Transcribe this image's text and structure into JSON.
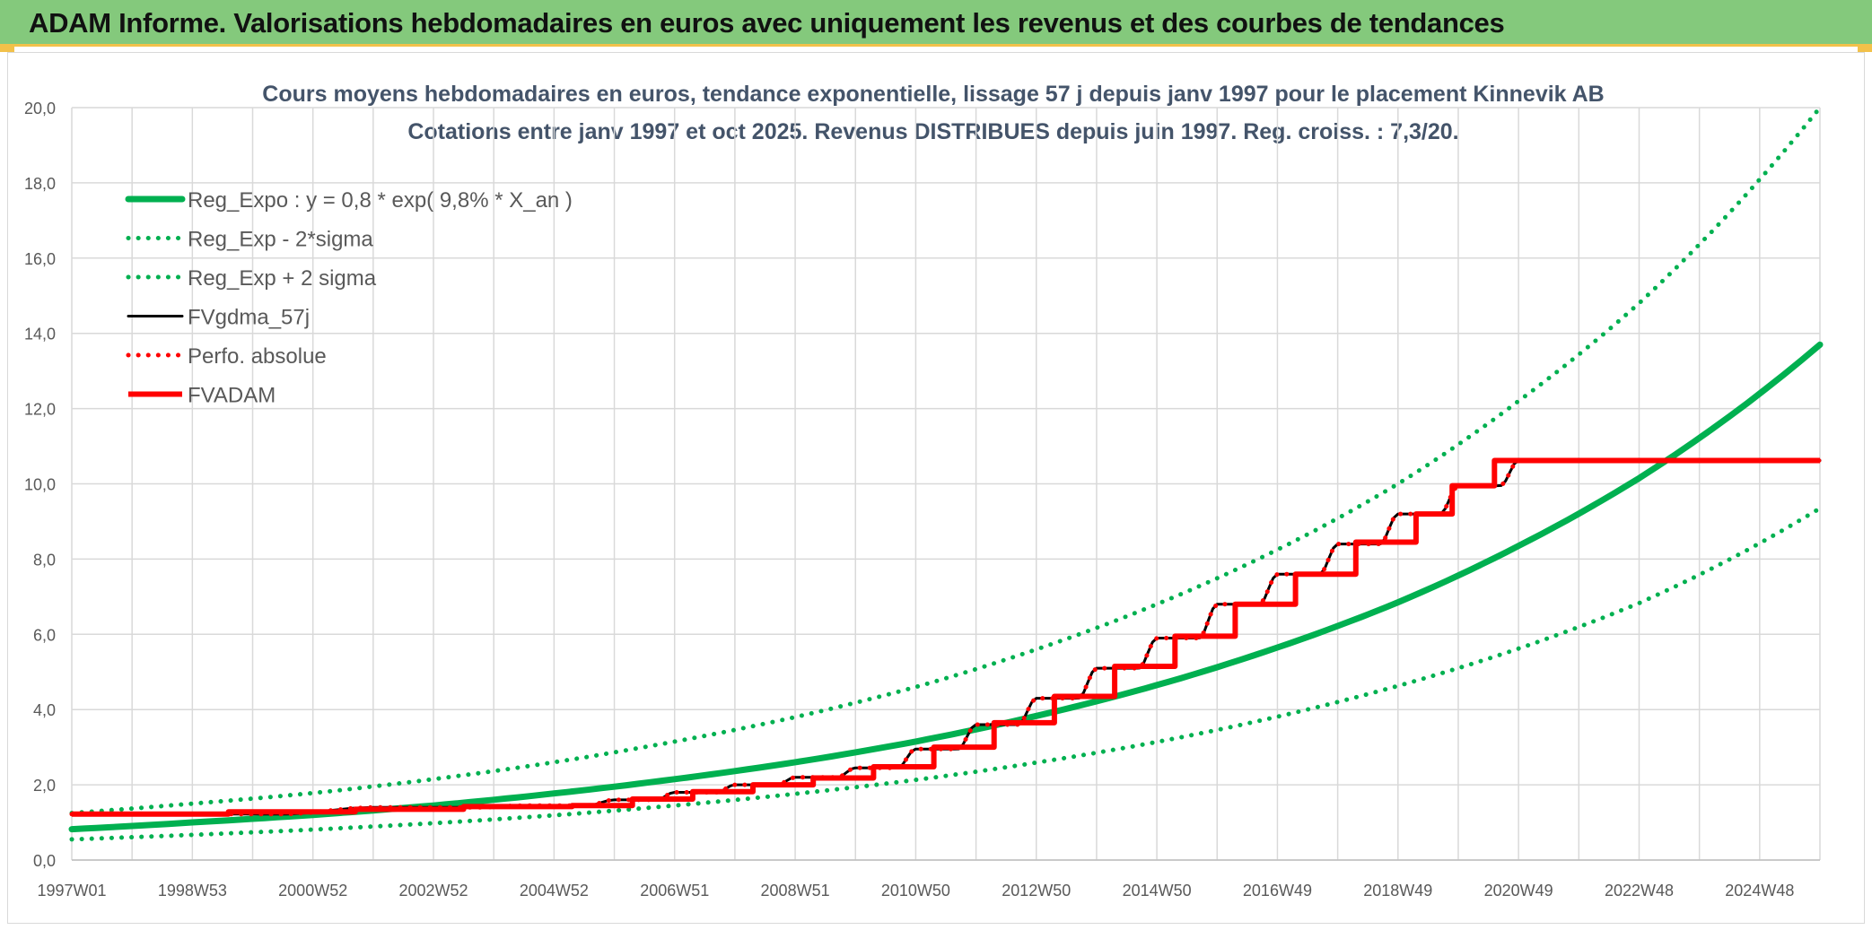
{
  "header": {
    "title": "ADAM Informe. Valorisations hebdomadaires en euros avec uniquement les revenus et des courbes de tendances"
  },
  "colors": {
    "banner": "#84c97c",
    "banner_accent": "#f2c14a",
    "green": "#00b050",
    "red": "#ff0000",
    "black": "#000000",
    "grid": "#d9d9d9",
    "axis_text": "#595959",
    "title_text": "#44546a"
  },
  "chart_data": {
    "type": "line",
    "title_line1": "Cours moyens hebdomadaires en euros, tendance exponentielle, lissage 57 j depuis janv 1997 pour le placement Kinnevik AB",
    "title_line2": "Cotations entre janv 1997 et oct 2025. Revenus DISTRIBUES depuis juin 1997. Reg. croiss. : 7,3/20.",
    "x_ticks": [
      "1997W01",
      "1998W53",
      "2000W52",
      "2002W52",
      "2004W52",
      "2006W51",
      "2008W51",
      "2010W50",
      "2012W50",
      "2014W50",
      "2016W49",
      "2018W49",
      "2020W49",
      "2022W48",
      "2024W48"
    ],
    "x_tick_years": [
      1997.0,
      1999.0,
      2001.0,
      2003.0,
      2005.0,
      2007.0,
      2009.0,
      2011.0,
      2013.0,
      2015.0,
      2017.0,
      2019.0,
      2021.0,
      2023.0,
      2025.0
    ],
    "xlim": [
      1997.0,
      2026.0
    ],
    "ylim": [
      0,
      20
    ],
    "y_ticks": [
      "0,0",
      "2,0",
      "4,0",
      "6,0",
      "8,0",
      "10,0",
      "12,0",
      "14,0",
      "16,0",
      "18,0",
      "20,0"
    ],
    "y_tick_values": [
      0,
      2,
      4,
      6,
      8,
      10,
      12,
      14,
      16,
      18,
      20
    ],
    "grid": true,
    "legend_position": "top-left",
    "series": [
      {
        "name": "Reg_Expo : y = 0,8 * exp( 9,8% *  X_an )",
        "style": "solid-thick",
        "color": "#00b050",
        "x": [
          1997,
          1999,
          2001,
          2003,
          2005,
          2007,
          2009,
          2011,
          2013,
          2015,
          2017,
          2019,
          2021,
          2023,
          2026
        ],
        "values": [
          0.82,
          1.0,
          1.2,
          1.45,
          1.77,
          2.15,
          2.6,
          3.15,
          3.83,
          4.65,
          5.65,
          6.85,
          8.35,
          10.15,
          13.7
        ]
      },
      {
        "name": "Reg_Exp - 2*sigma",
        "style": "dotted",
        "color": "#00b050",
        "x": [
          1997,
          1999,
          2001,
          2003,
          2005,
          2007,
          2009,
          2011,
          2013,
          2015,
          2017,
          2019,
          2021,
          2023,
          2026
        ],
        "values": [
          0.55,
          0.67,
          0.81,
          0.98,
          1.19,
          1.45,
          1.76,
          2.13,
          2.59,
          3.14,
          3.81,
          4.63,
          5.62,
          6.83,
          9.35
        ]
      },
      {
        "name": "Reg_Exp + 2 sigma",
        "style": "dotted",
        "color": "#00b050",
        "x": [
          1997,
          1999,
          2001,
          2003,
          2005,
          2007,
          2009,
          2011,
          2013,
          2015,
          2017,
          2019,
          2021,
          2023,
          2026
        ],
        "values": [
          1.25,
          1.5,
          1.78,
          2.15,
          2.6,
          3.15,
          3.8,
          4.6,
          5.6,
          6.8,
          8.25,
          10.0,
          12.2,
          14.8,
          20.0
        ]
      },
      {
        "name": "FVgdma_57j",
        "style": "solid",
        "color": "#000000",
        "x": [
          1997.0,
          2002.0,
          2004.5,
          2006.0,
          2007.0,
          2008.0,
          2009.0,
          2010.0,
          2011.0,
          2012.0,
          2013.0,
          2014.0,
          2015.0,
          2016.0,
          2017.0,
          2018.0,
          2019.0,
          2020.0,
          2021.0,
          2026.0
        ],
        "values": [
          1.22,
          1.4,
          1.45,
          1.6,
          1.8,
          2.0,
          2.2,
          2.45,
          2.95,
          3.6,
          4.3,
          5.1,
          5.9,
          6.8,
          7.6,
          8.4,
          9.2,
          9.95,
          10.62,
          10.62
        ]
      },
      {
        "name": "Perfo. absolue",
        "style": "dotted",
        "color": "#ff0000",
        "x": [
          1997.0,
          2002.0,
          2004.5,
          2006.0,
          2007.0,
          2008.0,
          2009.0,
          2010.0,
          2011.0,
          2012.0,
          2013.0,
          2014.0,
          2015.0,
          2016.0,
          2017.0,
          2018.0,
          2019.0,
          2020.0,
          2021.0,
          2026.0
        ],
        "values": [
          1.22,
          1.4,
          1.45,
          1.6,
          1.8,
          2.0,
          2.2,
          2.45,
          2.95,
          3.6,
          4.3,
          5.1,
          5.9,
          6.8,
          7.6,
          8.4,
          9.2,
          9.95,
          10.62,
          10.62
        ]
      },
      {
        "name": "FVADAM",
        "style": "step-thick",
        "color": "#ff0000",
        "x": [
          1997.0,
          1999.6,
          2001.7,
          2003.5,
          2005.3,
          2006.3,
          2007.3,
          2008.3,
          2009.3,
          2010.3,
          2011.3,
          2012.3,
          2013.3,
          2014.3,
          2015.3,
          2016.3,
          2017.3,
          2018.3,
          2019.3,
          2019.9,
          2020.6,
          2026.0
        ],
        "values": [
          1.22,
          1.28,
          1.35,
          1.42,
          1.45,
          1.62,
          1.82,
          2.0,
          2.18,
          2.48,
          3.0,
          3.65,
          4.35,
          5.15,
          5.95,
          6.8,
          7.6,
          8.45,
          9.2,
          9.95,
          10.62,
          10.62
        ]
      }
    ]
  }
}
